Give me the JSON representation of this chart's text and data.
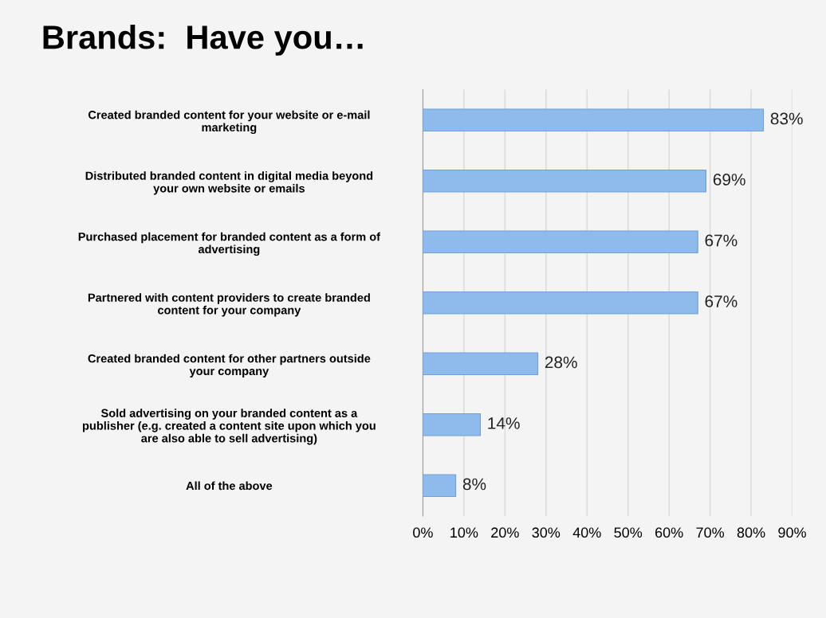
{
  "chart_data": {
    "type": "bar",
    "orientation": "horizontal",
    "title": "Brands:  Have you…",
    "categories": [
      "Created branded content for your website or e-mail\nmarketing",
      "Distributed branded content in digital media beyond\nyour own website or emails",
      "Purchased placement for branded content as a form of\nadvertising",
      "Partnered with content providers to create branded\ncontent for your company",
      "Created branded content for other partners outside\nyour company",
      "Sold advertising on your branded content as a\npublisher (e.g. created a content site upon which you\nare also able to sell advertising)",
      "All of the above"
    ],
    "values": [
      83,
      69,
      67,
      67,
      28,
      14,
      8
    ],
    "value_labels": [
      "83%",
      "69%",
      "67%",
      "67%",
      "28%",
      "14%",
      "8%"
    ],
    "color": "#8fbbec",
    "xlim": [
      0,
      90
    ],
    "xticks": [
      {
        "value": 0,
        "label": "0%"
      },
      {
        "value": 10,
        "label": "10%"
      },
      {
        "value": 20,
        "label": "20%"
      },
      {
        "value": 30,
        "label": "30%"
      },
      {
        "value": 40,
        "label": "40%"
      },
      {
        "value": 50,
        "label": "50%"
      },
      {
        "value": 60,
        "label": "60%"
      },
      {
        "value": 70,
        "label": "70%"
      },
      {
        "value": 80,
        "label": "80%"
      },
      {
        "value": 90,
        "label": "90%"
      }
    ],
    "grid": "x"
  }
}
